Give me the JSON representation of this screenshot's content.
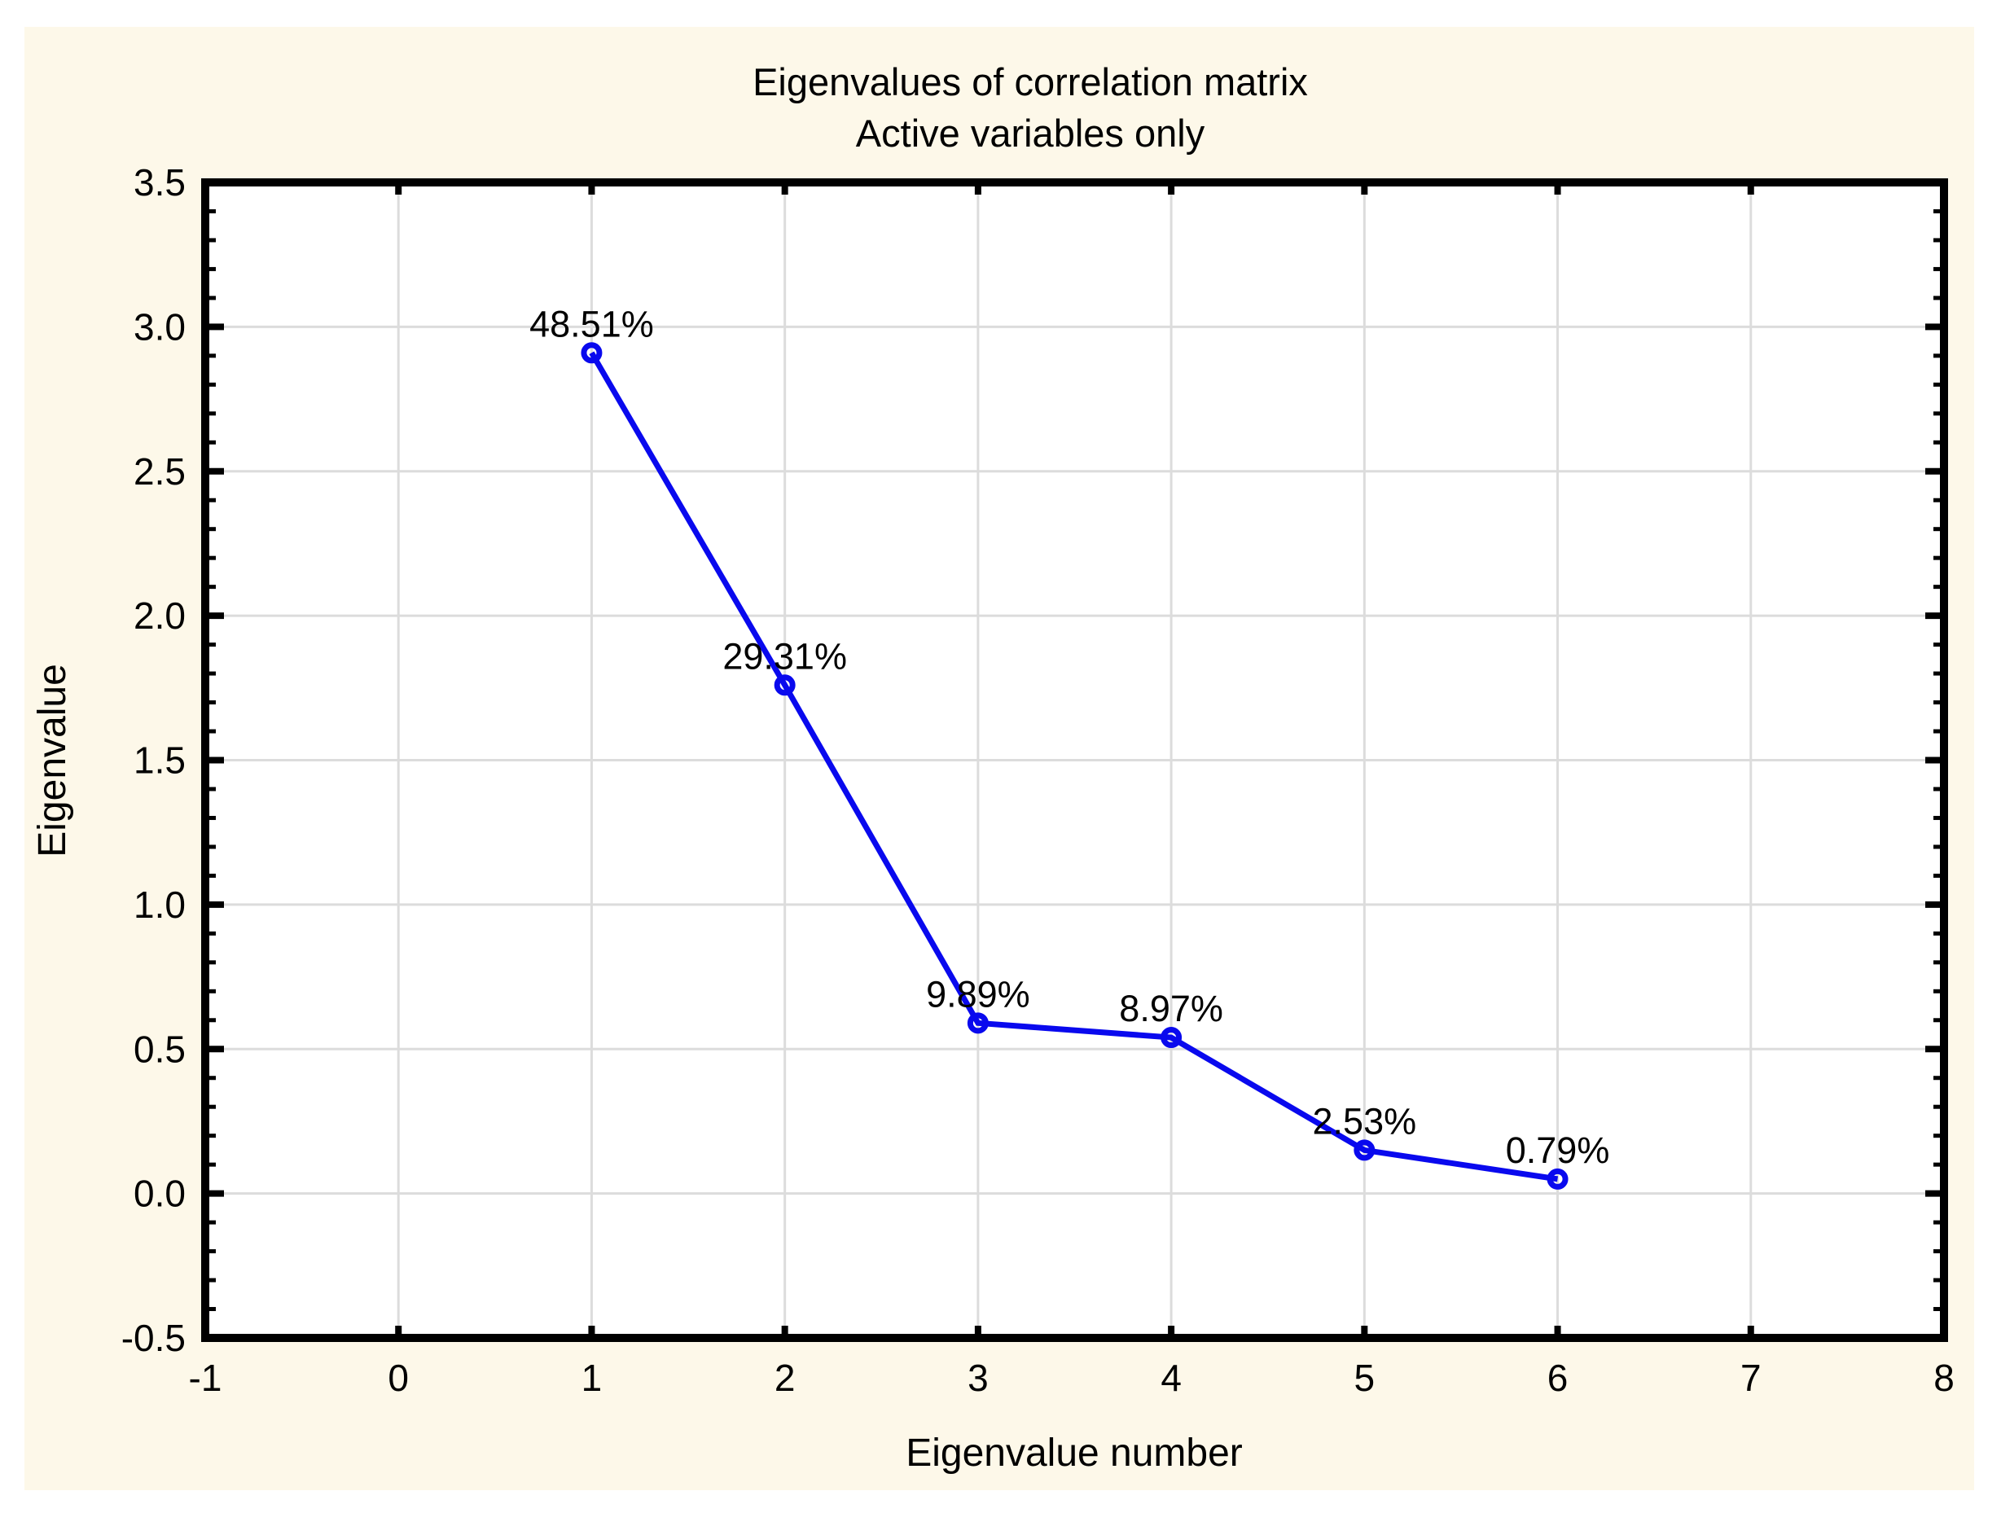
{
  "window": {
    "background_color": "#FFFFFF",
    "panel_background_color": "#FDF8E9"
  },
  "chart_data": {
    "type": "line",
    "title": "Eigenvalues of correlation matrix",
    "subtitle": "Active variables only",
    "xlabel": "Eigenvalue number",
    "ylabel": "Eigenvalue",
    "x": [
      1,
      2,
      3,
      4,
      5,
      6
    ],
    "y": [
      2.91,
      1.76,
      0.59,
      0.54,
      0.15,
      0.05
    ],
    "point_labels": [
      "48.51%",
      "29.31%",
      "9.89%",
      "8.97%",
      "2.53%",
      "0.79%"
    ],
    "xlim": [
      -1,
      8
    ],
    "ylim": [
      -0.5,
      3.5
    ],
    "x_ticks": [
      -1,
      0,
      1,
      2,
      3,
      4,
      5,
      6,
      7,
      8
    ],
    "x_tick_labels": [
      "-1",
      "0",
      "1",
      "2",
      "3",
      "4",
      "5",
      "6",
      "7",
      "8"
    ],
    "y_ticks": [
      -0.5,
      0,
      0.5,
      1,
      1.5,
      2,
      2.5,
      3,
      3.5
    ],
    "y_tick_labels": [
      "-0.5",
      "0.0",
      "0.5",
      "1.0",
      "1.5",
      "2.0",
      "2.5",
      "3.0",
      "3.5"
    ],
    "y_minor_tick_step": 0.1,
    "grid": true,
    "legend_position": "none",
    "marker": "open-circle",
    "line_color": "#0909EE",
    "grid_color": "#DCDCDC",
    "axis_color": "#000000",
    "plot_background_color": "#FFFFFF",
    "text_color": "#000000"
  }
}
